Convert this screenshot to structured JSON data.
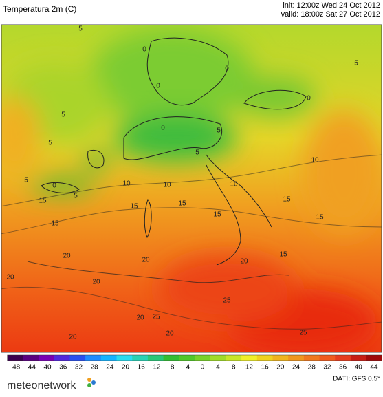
{
  "header": {
    "title": "Temperatura 2m (C)",
    "init": "init: 12:00z Wed 24 Oct 2012",
    "valid": "valid: 18:00z Sat 27 Oct 2012"
  },
  "contour_labels": [
    "5",
    "0",
    "0",
    "5",
    "5",
    "0",
    "0",
    "5",
    "0",
    "5",
    "5",
    "5",
    "0",
    "5",
    "10",
    "10",
    "10",
    "10",
    "15",
    "15",
    "15",
    "15",
    "15",
    "15",
    "15",
    "15",
    "20",
    "20",
    "20",
    "20",
    "20",
    "20",
    "20",
    "25",
    "25",
    "25",
    "20"
  ],
  "colorbar": {
    "ticks": [
      -48,
      -44,
      -40,
      -36,
      -32,
      -28,
      -24,
      -20,
      -16,
      -12,
      -8,
      -4,
      0,
      4,
      8,
      12,
      16,
      20,
      24,
      28,
      32,
      36,
      40,
      44
    ],
    "colors": [
      "#3c0050",
      "#5a0080",
      "#7800b4",
      "#5028dc",
      "#2850f0",
      "#1e8cff",
      "#14b4ff",
      "#28dcf0",
      "#28d2b4",
      "#28c878",
      "#32be32",
      "#50c828",
      "#78d228",
      "#a0dc28",
      "#c8e628",
      "#f0f028",
      "#f0d21e",
      "#f0b41e",
      "#f0961e",
      "#f0781e",
      "#f05a1e",
      "#e63c1e",
      "#c81e14",
      "#a00a0a"
    ]
  },
  "footer": {
    "logo": "meteonetwork",
    "source": "DATI: GFS 0.5°"
  }
}
